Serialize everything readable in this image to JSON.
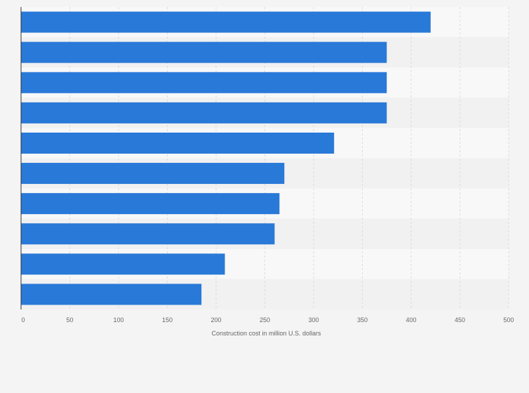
{
  "chart_data": {
    "type": "bar",
    "orientation": "horizontal",
    "categories": [
      "",
      "",
      "",
      "",
      "",
      "",
      "",
      "",
      "",
      ""
    ],
    "values": [
      420,
      375,
      375,
      375,
      321,
      270,
      265,
      260,
      209,
      185
    ],
    "xlabel": "Construction cost in million U.S. dollars",
    "xlim": [
      0,
      500
    ],
    "xticks": [
      "0",
      "50",
      "100",
      "150",
      "200",
      "250",
      "300",
      "350",
      "400",
      "450",
      "500"
    ],
    "grid": true,
    "colors": {
      "bar": "#2979d8",
      "band_light": "#f8f8f8",
      "band_dark": "#f1f1f1",
      "grid": "#dcdcdc",
      "axis": "#333333",
      "background": "#f4f4f4"
    }
  }
}
